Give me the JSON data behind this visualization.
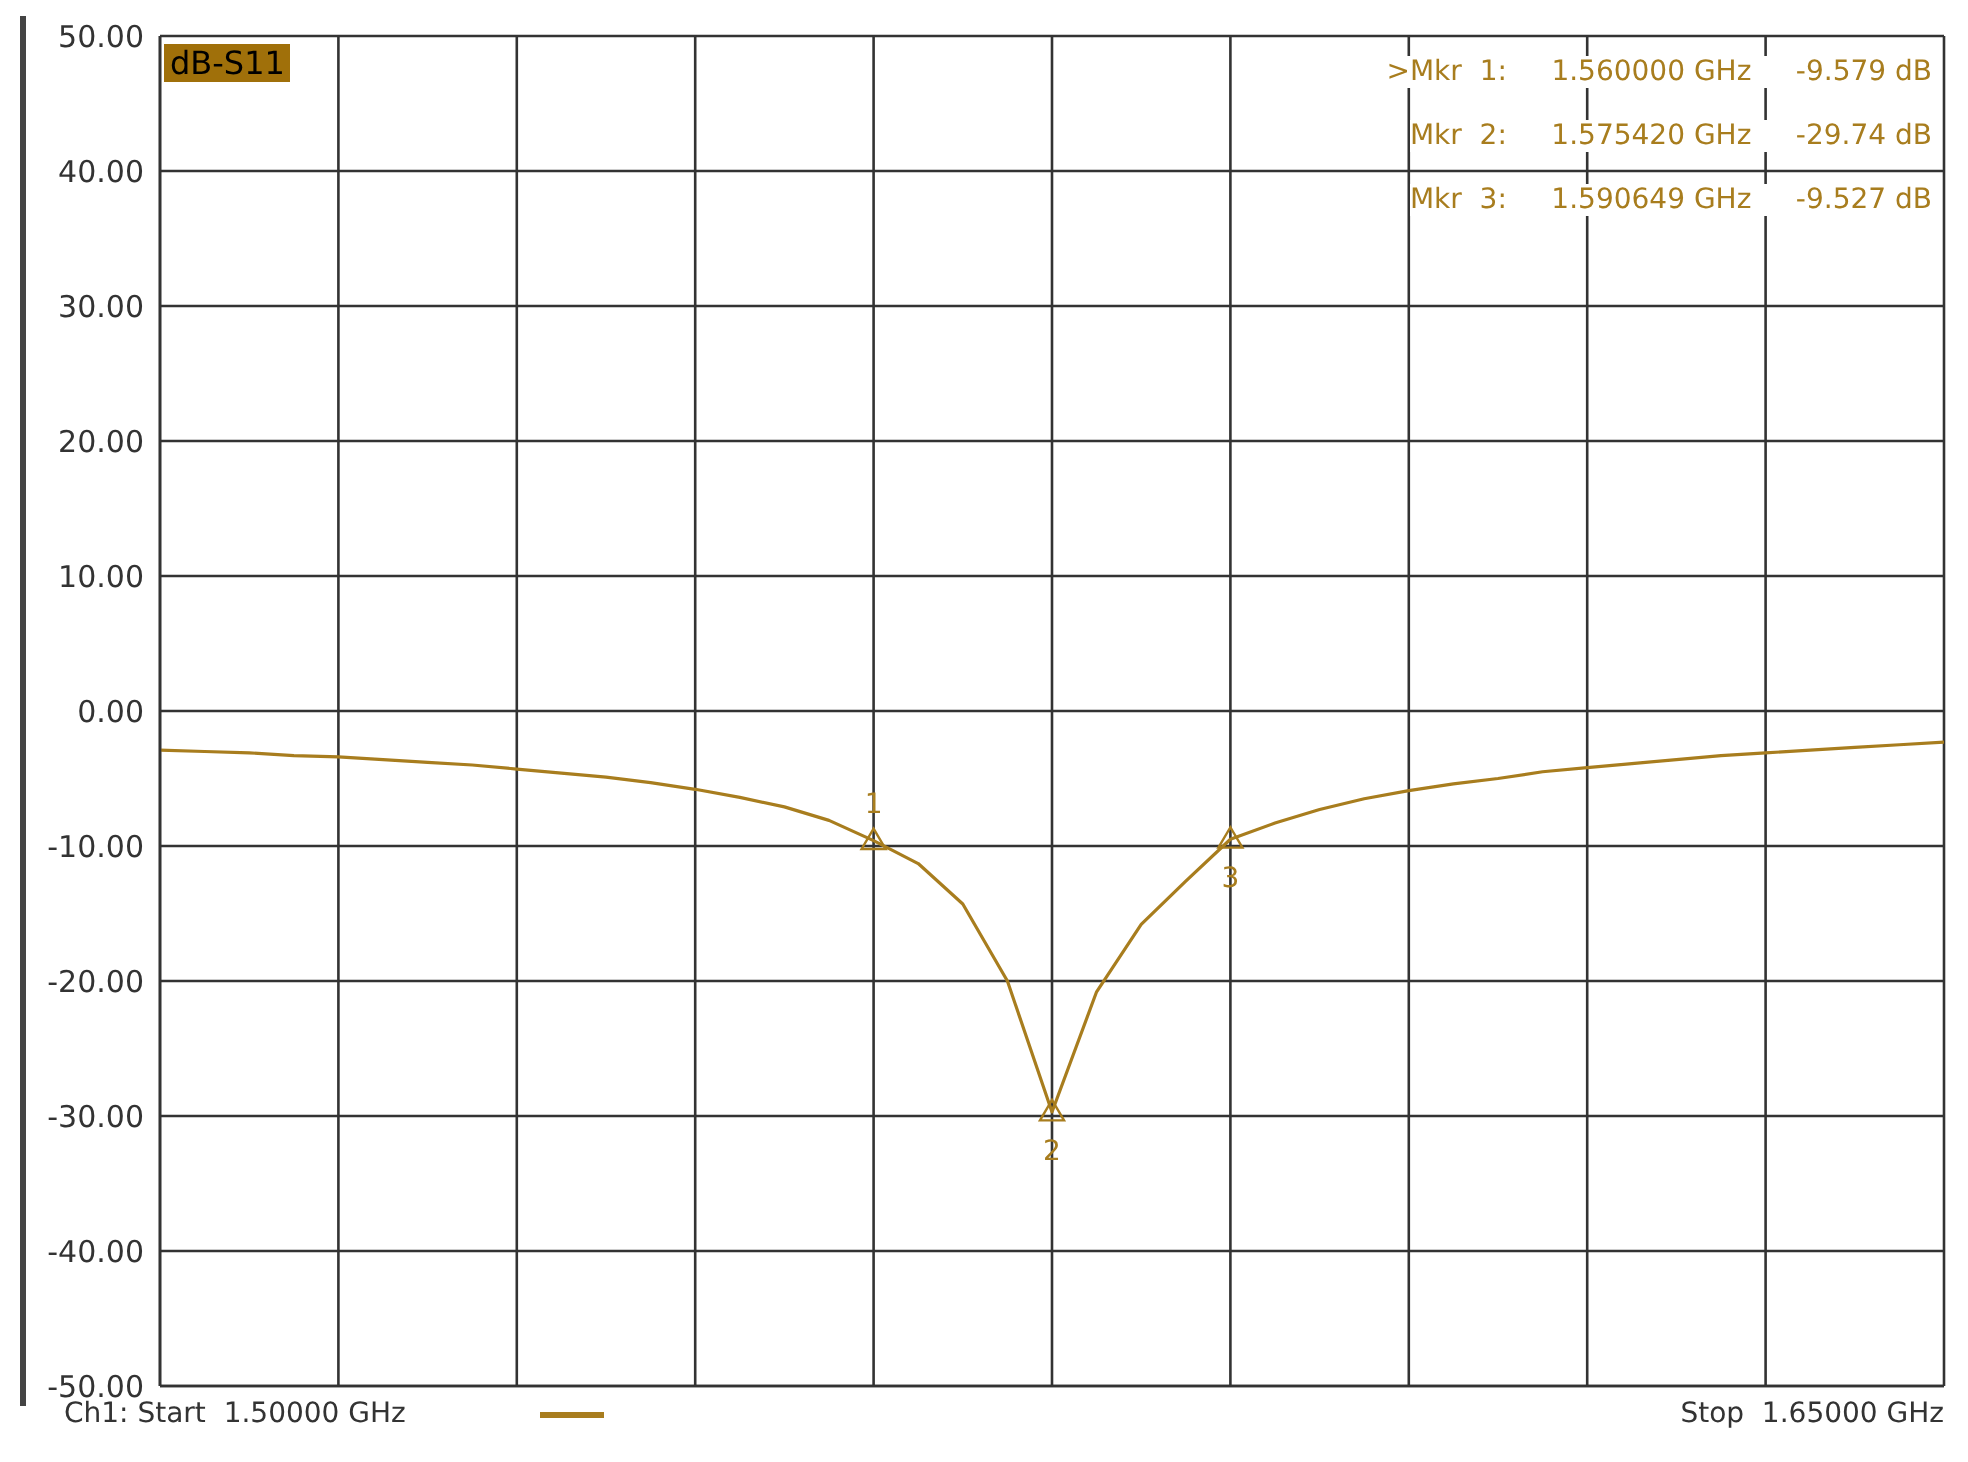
{
  "chart_data": {
    "type": "line",
    "title": "dB-S11",
    "categories": [
      null,
      null,
      null,
      null,
      null,
      null,
      null,
      null,
      null,
      null,
      null,
      null,
      null,
      null,
      null,
      null,
      null,
      null,
      null,
      null,
      null,
      null,
      null,
      null,
      null,
      null,
      null,
      null,
      null,
      null,
      null,
      null,
      null,
      null,
      null,
      null,
      null,
      null,
      null,
      null,
      null
    ],
    "ylim": [
      -50,
      50
    ],
    "yticks": [
      {
        "value": 50,
        "label": "50.00"
      },
      {
        "value": 40,
        "label": "40.00"
      },
      {
        "value": 30,
        "label": "30.00"
      },
      {
        "value": 20,
        "label": "20.00"
      },
      {
        "value": 10,
        "label": "10.00"
      },
      {
        "value": 0,
        "label": "0.00"
      },
      {
        "value": -10,
        "label": "-10.00"
      },
      {
        "value": -20,
        "label": "-20.00"
      },
      {
        "value": -30,
        "label": "-30.00"
      },
      {
        "value": -40,
        "label": "-40.00"
      },
      {
        "value": -50,
        "label": "-50.00"
      }
    ],
    "tick_labels": "y",
    "grid": true,
    "line_style": "solid",
    "marker": "none",
    "series": [
      {
        "color": "#a87d1e",
        "values": [
          -2.9,
          -3.0,
          -3.1,
          -3.3,
          -3.4,
          -3.6,
          -3.8,
          -4.0,
          -4.3,
          -4.6,
          -4.9,
          -5.3,
          -5.8,
          -6.4,
          -7.1,
          -8.1,
          -9.6,
          -11.3,
          -14.3,
          -20.0,
          -29.7,
          -20.8,
          -15.8,
          -12.6,
          -9.5,
          -8.3,
          -7.3,
          -6.5,
          -5.9,
          -5.4,
          -5.0,
          -4.5,
          -4.2,
          -3.9,
          -3.6,
          -3.3,
          -3.1,
          -2.9,
          -2.7,
          -2.5,
          -2.3
        ]
      },
      {
        "type": "scatter",
        "marker": "triangle",
        "color": "#a87d1e",
        "values": [
          null,
          null,
          null,
          null,
          null,
          null,
          null,
          null,
          null,
          null,
          null,
          null,
          null,
          null,
          null,
          null,
          -9.6,
          null,
          null,
          null,
          -29.7,
          null,
          null,
          null,
          -9.5,
          null,
          null,
          null,
          null,
          null,
          null,
          null,
          null,
          null,
          null,
          null,
          null,
          null,
          null,
          null,
          null
        ]
      }
    ],
    "annotations": [
      ">Mkr  1:     1.560000 GHz     -9.579 dB",
      "Mkr  2:     1.575420 GHz     -29.74 dB",
      "Mkr  3:     1.590649 GHz     -9.527 dB",
      "Ch1: Start  1.50000 GHz",
      "Stop  1.65000 GHz",
      "1",
      "2",
      "3"
    ]
  }
}
